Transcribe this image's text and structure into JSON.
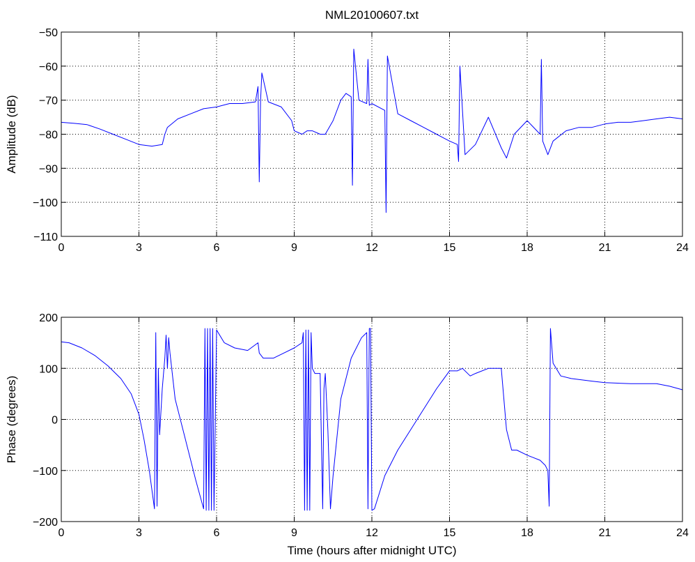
{
  "chart_data": [
    {
      "type": "line",
      "title": "NML20100607.txt",
      "xlabel": "",
      "ylabel": "Amplitude (dB)",
      "xlim": [
        0,
        24
      ],
      "ylim": [
        -110,
        -50
      ],
      "xticks": [
        0,
        3,
        6,
        9,
        12,
        15,
        18,
        21,
        24
      ],
      "yticks": [
        -110,
        -100,
        -90,
        -80,
        -70,
        -60,
        -50
      ],
      "xtick_labels": [
        "0",
        "3",
        "6",
        "9",
        "12",
        "15",
        "18",
        "21",
        "24"
      ],
      "ytick_labels": [
        "−110",
        "−100",
        "−90",
        "−80",
        "−70",
        "−60",
        "−50"
      ],
      "grid": true,
      "color": "#0000ff",
      "x": [
        0,
        0.5,
        1.0,
        1.5,
        2.0,
        2.5,
        3.0,
        3.5,
        3.9,
        4.0,
        4.1,
        4.5,
        5.0,
        5.5,
        6.0,
        6.5,
        7.0,
        7.5,
        7.6,
        7.65,
        7.7,
        7.75,
        8.0,
        8.5,
        8.9,
        9.0,
        9.3,
        9.5,
        9.7,
        10.0,
        10.2,
        10.5,
        10.8,
        11.0,
        11.2,
        11.25,
        11.3,
        11.5,
        11.8,
        11.85,
        11.9,
        12.0,
        12.5,
        12.55,
        12.6,
        13.0,
        13.5,
        14.0,
        14.5,
        15.0,
        15.3,
        15.35,
        15.4,
        15.6,
        16.0,
        16.5,
        17.0,
        17.2,
        17.5,
        18.0,
        18.5,
        18.55,
        18.6,
        18.8,
        19.0,
        19.5,
        20.0,
        20.5,
        21.0,
        21.5,
        22.0,
        22.5,
        23.0,
        23.5,
        24.0
      ],
      "values": [
        -76.5,
        -76.8,
        -77.2,
        -78.5,
        -80,
        -81.5,
        -83,
        -83.5,
        -83,
        -80,
        -78,
        -75.5,
        -74,
        -72.5,
        -72,
        -71,
        -71,
        -70.5,
        -66,
        -94,
        -70,
        -62,
        -70.5,
        -72,
        -76,
        -79,
        -80,
        -79,
        -79,
        -80,
        -80,
        -76,
        -70,
        -68,
        -69,
        -95,
        -55,
        -70,
        -71,
        -58,
        -71.5,
        -71,
        -73,
        -103,
        -57,
        -74,
        -76,
        -78,
        -80,
        -82,
        -83,
        -88,
        -60,
        -86,
        -83,
        -75,
        -84,
        -87,
        -80,
        -76,
        -80,
        -58,
        -82,
        -86,
        -82,
        -79,
        -78,
        -78,
        -77,
        -76.5,
        -76.5,
        -76,
        -75.5,
        -75,
        -75.5
      ]
    },
    {
      "type": "line",
      "title": "",
      "xlabel": "Time (hours after midnight UTC)",
      "ylabel": "Phase (degrees)",
      "xlim": [
        0,
        24
      ],
      "ylim": [
        -200,
        200
      ],
      "xticks": [
        0,
        3,
        6,
        9,
        12,
        15,
        18,
        21,
        24
      ],
      "yticks": [
        -200,
        -100,
        0,
        100,
        200
      ],
      "xtick_labels": [
        "0",
        "3",
        "6",
        "9",
        "12",
        "15",
        "18",
        "21",
        "24"
      ],
      "ytick_labels": [
        "−200",
        "−100",
        "0",
        "100",
        "200"
      ],
      "grid": true,
      "color": "#0000ff",
      "x": [
        0,
        0.3,
        0.8,
        1.3,
        1.8,
        2.3,
        2.7,
        3.0,
        3.2,
        3.4,
        3.6,
        3.65,
        3.7,
        3.75,
        3.8,
        3.9,
        4.0,
        4.05,
        4.1,
        4.15,
        4.2,
        4.4,
        4.8,
        5.2,
        5.5,
        5.55,
        5.6,
        5.65,
        5.7,
        5.75,
        5.8,
        5.85,
        5.9,
        6.0,
        6.3,
        6.7,
        7.2,
        7.6,
        7.65,
        7.8,
        8.2,
        8.6,
        9.0,
        9.3,
        9.35,
        9.4,
        9.45,
        9.5,
        9.55,
        9.6,
        9.65,
        9.7,
        9.8,
        10.0,
        10.1,
        10.15,
        10.2,
        10.3,
        10.4,
        10.5,
        10.8,
        11.2,
        11.6,
        11.8,
        11.85,
        11.9,
        11.95,
        12.0,
        12.1,
        12.5,
        13.0,
        13.5,
        14.0,
        14.5,
        15.0,
        15.3,
        15.5,
        15.8,
        16.0,
        16.5,
        17.0,
        17.2,
        17.4,
        17.6,
        18.0,
        18.5,
        18.7,
        18.8,
        18.85,
        18.9,
        19.0,
        19.3,
        19.7,
        20.5,
        21.0,
        22.0,
        23.0,
        23.5,
        24.0
      ],
      "values": [
        152,
        150,
        140,
        125,
        105,
        80,
        50,
        10,
        -40,
        -100,
        -175,
        170,
        -170,
        100,
        -30,
        60,
        120,
        165,
        100,
        160,
        130,
        40,
        -40,
        -120,
        -175,
        178,
        -178,
        178,
        -178,
        178,
        -178,
        178,
        -178,
        175,
        150,
        140,
        135,
        150,
        130,
        120,
        120,
        130,
        140,
        150,
        170,
        -178,
        175,
        -178,
        175,
        -178,
        170,
        100,
        90,
        90,
        -175,
        60,
        90,
        -20,
        -175,
        -110,
        40,
        120,
        160,
        170,
        -175,
        178,
        178,
        -178,
        -175,
        -110,
        -60,
        -20,
        20,
        60,
        95,
        95,
        100,
        85,
        90,
        100,
        100,
        -20,
        -60,
        -60,
        -70,
        -80,
        -90,
        -100,
        -170,
        178,
        110,
        85,
        80,
        75,
        72,
        70,
        70,
        65,
        58
      ]
    }
  ]
}
